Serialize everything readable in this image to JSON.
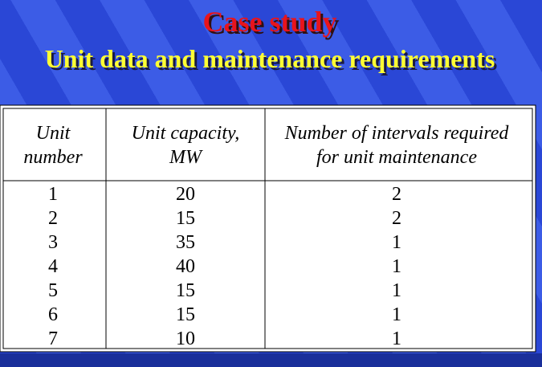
{
  "title": "Case study",
  "subtitle": "Unit data and maintenance requirements",
  "table": {
    "header": [
      [
        "Unit",
        "number"
      ],
      [
        "Unit capacity,",
        "MW"
      ],
      [
        "Number of intervals required",
        "for unit maintenance"
      ]
    ],
    "rows": [
      [
        1,
        20,
        2
      ],
      [
        2,
        15,
        2
      ],
      [
        3,
        35,
        1
      ],
      [
        4,
        40,
        1
      ],
      [
        5,
        15,
        1
      ],
      [
        6,
        15,
        1
      ],
      [
        7,
        10,
        1
      ]
    ]
  }
}
